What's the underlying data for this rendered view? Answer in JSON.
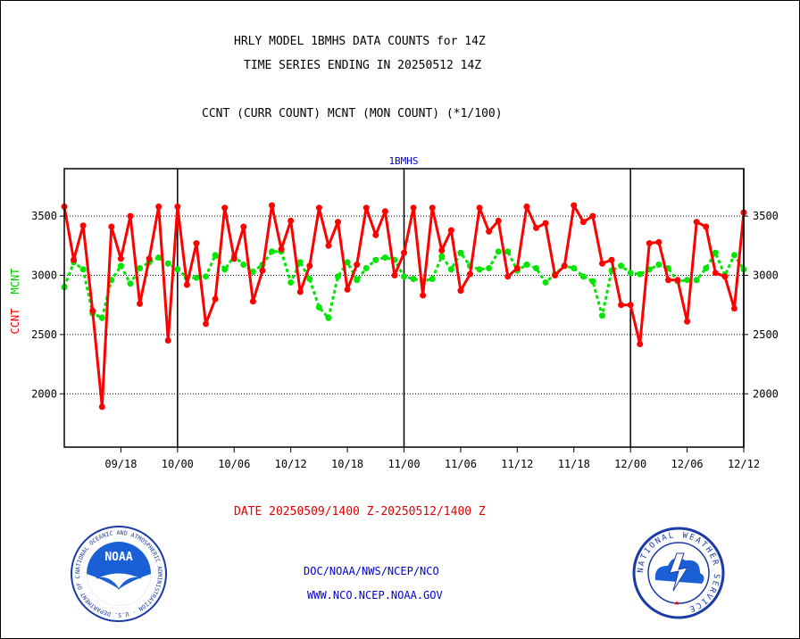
{
  "header": {
    "line1": "HRLY MODEL 1BMHS DATA COUNTS for 14Z",
    "line2": "TIME SERIES ENDING IN 20250512 14Z",
    "line3": "CCNT (CURR COUNT) MCNT (MON COUNT) (*1/100)"
  },
  "footer": {
    "date_range": "DATE 20250509/1400 Z-20250512/1400 Z",
    "org": "DOC/NOAA/NWS/NCEP/NCO",
    "url": "WWW.NCO.NCEP.NOAA.GOV"
  },
  "logos": {
    "left": {
      "name": "NOAA",
      "ring_text": "NATIONAL OCEANIC AND ATMOSPHERIC ADMINISTRATION · U.S. DEPARTMENT OF COMMERCE"
    },
    "right": {
      "name": "NATIONAL WEATHER SERVICE"
    }
  },
  "colors": {
    "ccnt": "#ff0000",
    "mcnt": "#00e600",
    "title_blue": "#0000cc",
    "date_red": "#e00000"
  },
  "chart_data": {
    "type": "line",
    "title": "1BMHS",
    "ylabel_left": [
      "CCNT",
      "MCNT"
    ],
    "ylim": [
      1550,
      3900
    ],
    "yticks": [
      2000,
      2500,
      3000,
      3500
    ],
    "xticks": [
      "09/18",
      "10/00",
      "10/06",
      "10/12",
      "10/18",
      "11/00",
      "11/06",
      "11/12",
      "11/18",
      "12/00",
      "12/06",
      "12/12"
    ],
    "x_start_hour": 12,
    "x_end_hour": 84,
    "vertical_lines_hours": [
      24,
      48,
      72,
      84
    ],
    "grid": "horizontal-dotted",
    "series": [
      {
        "name": "CCNT",
        "style": "solid",
        "values": [
          3580,
          3130,
          3420,
          2700,
          1890,
          3410,
          3140,
          3500,
          2760,
          3140,
          3580,
          2450,
          3580,
          2920,
          3270,
          2590,
          2800,
          3570,
          3140,
          3410,
          2780,
          3040,
          3590,
          3220,
          3460,
          2860,
          3080,
          3570,
          3250,
          3450,
          2880,
          3090,
          3570,
          3340,
          3540,
          3000,
          3190,
          3570,
          2830,
          3570,
          3210,
          3380,
          2870,
          3010,
          3570,
          3370,
          3460,
          2990,
          3060,
          3580,
          3400,
          3440,
          3000,
          3080,
          3590,
          3450,
          3500,
          3100,
          3130,
          2750,
          2750,
          2420,
          3270,
          3280,
          2960,
          2960,
          2610,
          3450,
          3410,
          3020,
          2990,
          2720,
          3530
        ]
      },
      {
        "name": "MCNT",
        "style": "dotted",
        "values": [
          2900,
          3110,
          3050,
          2680,
          2640,
          2960,
          3080,
          2930,
          3060,
          3110,
          3150,
          3100,
          3050,
          2980,
          2980,
          2990,
          3170,
          3050,
          3160,
          3090,
          3030,
          3090,
          3200,
          3200,
          2940,
          3110,
          2970,
          2730,
          2640,
          2990,
          3110,
          2960,
          3060,
          3130,
          3150,
          3130,
          2990,
          2970,
          2950,
          2970,
          3160,
          3050,
          3190,
          3080,
          3050,
          3060,
          3200,
          3200,
          3040,
          3090,
          3060,
          2940,
          3010,
          3080,
          3060,
          2990,
          2950,
          2660,
          3040,
          3080,
          3020,
          3010,
          3050,
          3090,
          3060,
          2950,
          2960,
          2960,
          3060,
          3190,
          3000,
          3170,
          3050
        ]
      }
    ]
  }
}
